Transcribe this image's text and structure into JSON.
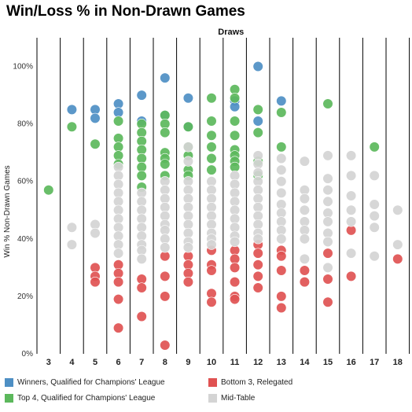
{
  "chart_data": {
    "type": "scatter",
    "title": "Win/Loss % in Non-Drawn Games",
    "xlabel": "Draws",
    "ylabel": "Win % Non-Drawn Games",
    "x_categories": [
      3,
      4,
      5,
      6,
      7,
      8,
      9,
      10,
      11,
      12,
      13,
      14,
      15,
      16,
      17,
      18
    ],
    "ylim": [
      0,
      110
    ],
    "y_ticks": [
      "0%",
      "20%",
      "40%",
      "60%",
      "80%",
      "100%"
    ],
    "y_tick_values": [
      0,
      20,
      40,
      60,
      80,
      100
    ],
    "legend_position": "bottom",
    "series": [
      {
        "name": "Winners, Qualified for Champions' League",
        "color": "#4e8fc4",
        "points": [
          [
            4,
            85
          ],
          [
            5,
            85
          ],
          [
            5,
            82
          ],
          [
            6,
            87
          ],
          [
            6,
            84
          ],
          [
            7,
            90
          ],
          [
            7,
            81
          ],
          [
            8,
            96
          ],
          [
            8,
            83
          ],
          [
            9,
            89
          ],
          [
            9,
            79
          ],
          [
            11,
            88
          ],
          [
            11,
            86
          ],
          [
            12,
            100
          ],
          [
            12,
            81
          ],
          [
            13,
            88
          ]
        ]
      },
      {
        "name": "Top 4, Qualified for Champions' League",
        "color": "#5cb85c",
        "points": [
          [
            3,
            57
          ],
          [
            4,
            79
          ],
          [
            5,
            73
          ],
          [
            6,
            81
          ],
          [
            6,
            75
          ],
          [
            6,
            72
          ],
          [
            6,
            69
          ],
          [
            6,
            66
          ],
          [
            7,
            80
          ],
          [
            7,
            77
          ],
          [
            7,
            74
          ],
          [
            7,
            71
          ],
          [
            7,
            68
          ],
          [
            7,
            65
          ],
          [
            7,
            62
          ],
          [
            7,
            58
          ],
          [
            8,
            83
          ],
          [
            8,
            80
          ],
          [
            8,
            77
          ],
          [
            8,
            70
          ],
          [
            8,
            68
          ],
          [
            8,
            66
          ],
          [
            8,
            62
          ],
          [
            9,
            79
          ],
          [
            9,
            72
          ],
          [
            9,
            69
          ],
          [
            9,
            64
          ],
          [
            9,
            62
          ],
          [
            10,
            89
          ],
          [
            10,
            81
          ],
          [
            10,
            76
          ],
          [
            10,
            72
          ],
          [
            10,
            68
          ],
          [
            10,
            64
          ],
          [
            11,
            92
          ],
          [
            11,
            89
          ],
          [
            11,
            81
          ],
          [
            11,
            76
          ],
          [
            11,
            71
          ],
          [
            11,
            69
          ],
          [
            11,
            67
          ],
          [
            11,
            65
          ],
          [
            12,
            85
          ],
          [
            12,
            77
          ],
          [
            12,
            67
          ],
          [
            12,
            62
          ],
          [
            13,
            84
          ],
          [
            13,
            72
          ],
          [
            15,
            87
          ],
          [
            17,
            72
          ]
        ]
      },
      {
        "name": "Bottom 3, Relegated",
        "color": "#e05252",
        "points": [
          [
            5,
            30
          ],
          [
            5,
            27
          ],
          [
            5,
            25
          ],
          [
            6,
            31
          ],
          [
            6,
            28
          ],
          [
            6,
            25
          ],
          [
            6,
            19
          ],
          [
            6,
            9
          ],
          [
            7,
            26
          ],
          [
            7,
            23
          ],
          [
            7,
            13
          ],
          [
            8,
            34
          ],
          [
            8,
            27
          ],
          [
            8,
            20
          ],
          [
            8,
            3
          ],
          [
            9,
            34
          ],
          [
            9,
            31
          ],
          [
            9,
            28
          ],
          [
            9,
            25
          ],
          [
            10,
            36
          ],
          [
            10,
            31
          ],
          [
            10,
            29
          ],
          [
            10,
            21
          ],
          [
            10,
            18
          ],
          [
            11,
            36
          ],
          [
            11,
            33
          ],
          [
            11,
            30
          ],
          [
            11,
            25
          ],
          [
            11,
            20
          ],
          [
            11,
            19
          ],
          [
            12,
            38
          ],
          [
            12,
            35
          ],
          [
            12,
            31
          ],
          [
            12,
            27
          ],
          [
            12,
            23
          ],
          [
            13,
            36
          ],
          [
            13,
            34
          ],
          [
            13,
            29
          ],
          [
            13,
            20
          ],
          [
            13,
            16
          ],
          [
            14,
            29
          ],
          [
            14,
            25
          ],
          [
            15,
            35
          ],
          [
            15,
            26
          ],
          [
            15,
            18
          ],
          [
            16,
            43
          ],
          [
            16,
            27
          ],
          [
            18,
            33
          ]
        ]
      },
      {
        "name": "Mid-Table",
        "color": "#d4d4d4",
        "points": [
          [
            4,
            44
          ],
          [
            4,
            38
          ],
          [
            5,
            45
          ],
          [
            5,
            42
          ],
          [
            6,
            65
          ],
          [
            6,
            62
          ],
          [
            6,
            59
          ],
          [
            6,
            56
          ],
          [
            6,
            53
          ],
          [
            6,
            50
          ],
          [
            6,
            47
          ],
          [
            6,
            44
          ],
          [
            6,
            41
          ],
          [
            6,
            38
          ],
          [
            6,
            35
          ],
          [
            7,
            56
          ],
          [
            7,
            53
          ],
          [
            7,
            50
          ],
          [
            7,
            47
          ],
          [
            7,
            44
          ],
          [
            7,
            41
          ],
          [
            7,
            38
          ],
          [
            7,
            36
          ],
          [
            7,
            33
          ],
          [
            8,
            60
          ],
          [
            8,
            57
          ],
          [
            8,
            54
          ],
          [
            8,
            51
          ],
          [
            8,
            48
          ],
          [
            8,
            45
          ],
          [
            8,
            43
          ],
          [
            8,
            40
          ],
          [
            8,
            37
          ],
          [
            9,
            72
          ],
          [
            9,
            67
          ],
          [
            9,
            60
          ],
          [
            9,
            57
          ],
          [
            9,
            54
          ],
          [
            9,
            51
          ],
          [
            9,
            48
          ],
          [
            9,
            45
          ],
          [
            9,
            42
          ],
          [
            9,
            39
          ],
          [
            9,
            37
          ],
          [
            10,
            60
          ],
          [
            10,
            57
          ],
          [
            10,
            54
          ],
          [
            10,
            51
          ],
          [
            10,
            48
          ],
          [
            10,
            45
          ],
          [
            10,
            42
          ],
          [
            10,
            40
          ],
          [
            10,
            38
          ],
          [
            11,
            62
          ],
          [
            11,
            59
          ],
          [
            11,
            56
          ],
          [
            11,
            53
          ],
          [
            11,
            50
          ],
          [
            11,
            47
          ],
          [
            11,
            44
          ],
          [
            11,
            41
          ],
          [
            11,
            39
          ],
          [
            12,
            69
          ],
          [
            12,
            66
          ],
          [
            12,
            63
          ],
          [
            12,
            60
          ],
          [
            12,
            57
          ],
          [
            12,
            54
          ],
          [
            12,
            51
          ],
          [
            12,
            48
          ],
          [
            12,
            45
          ],
          [
            12,
            42
          ],
          [
            12,
            40
          ],
          [
            13,
            68
          ],
          [
            13,
            64
          ],
          [
            13,
            60
          ],
          [
            13,
            56
          ],
          [
            13,
            52
          ],
          [
            13,
            49
          ],
          [
            13,
            46
          ],
          [
            13,
            43
          ],
          [
            13,
            40
          ],
          [
            14,
            67
          ],
          [
            14,
            57
          ],
          [
            14,
            54
          ],
          [
            14,
            50
          ],
          [
            14,
            46
          ],
          [
            14,
            43
          ],
          [
            14,
            40
          ],
          [
            14,
            33
          ],
          [
            15,
            69
          ],
          [
            15,
            61
          ],
          [
            15,
            57
          ],
          [
            15,
            53
          ],
          [
            15,
            49
          ],
          [
            15,
            46
          ],
          [
            15,
            42
          ],
          [
            15,
            39
          ],
          [
            15,
            30
          ],
          [
            16,
            69
          ],
          [
            16,
            62
          ],
          [
            16,
            55
          ],
          [
            16,
            50
          ],
          [
            16,
            46
          ],
          [
            16,
            35
          ],
          [
            17,
            62
          ],
          [
            17,
            52
          ],
          [
            17,
            48
          ],
          [
            17,
            44
          ],
          [
            17,
            34
          ],
          [
            18,
            50
          ],
          [
            18,
            38
          ]
        ]
      }
    ]
  },
  "legend": {
    "items": [
      {
        "label": "Winners, Qualified for Champions' League",
        "color": "#4e8fc4"
      },
      {
        "label": "Bottom 3, Relegated",
        "color": "#e05252"
      },
      {
        "label": "Top 4, Qualified for Champions' League",
        "color": "#5cb85c"
      },
      {
        "label": "Mid-Table",
        "color": "#d4d4d4"
      }
    ]
  }
}
